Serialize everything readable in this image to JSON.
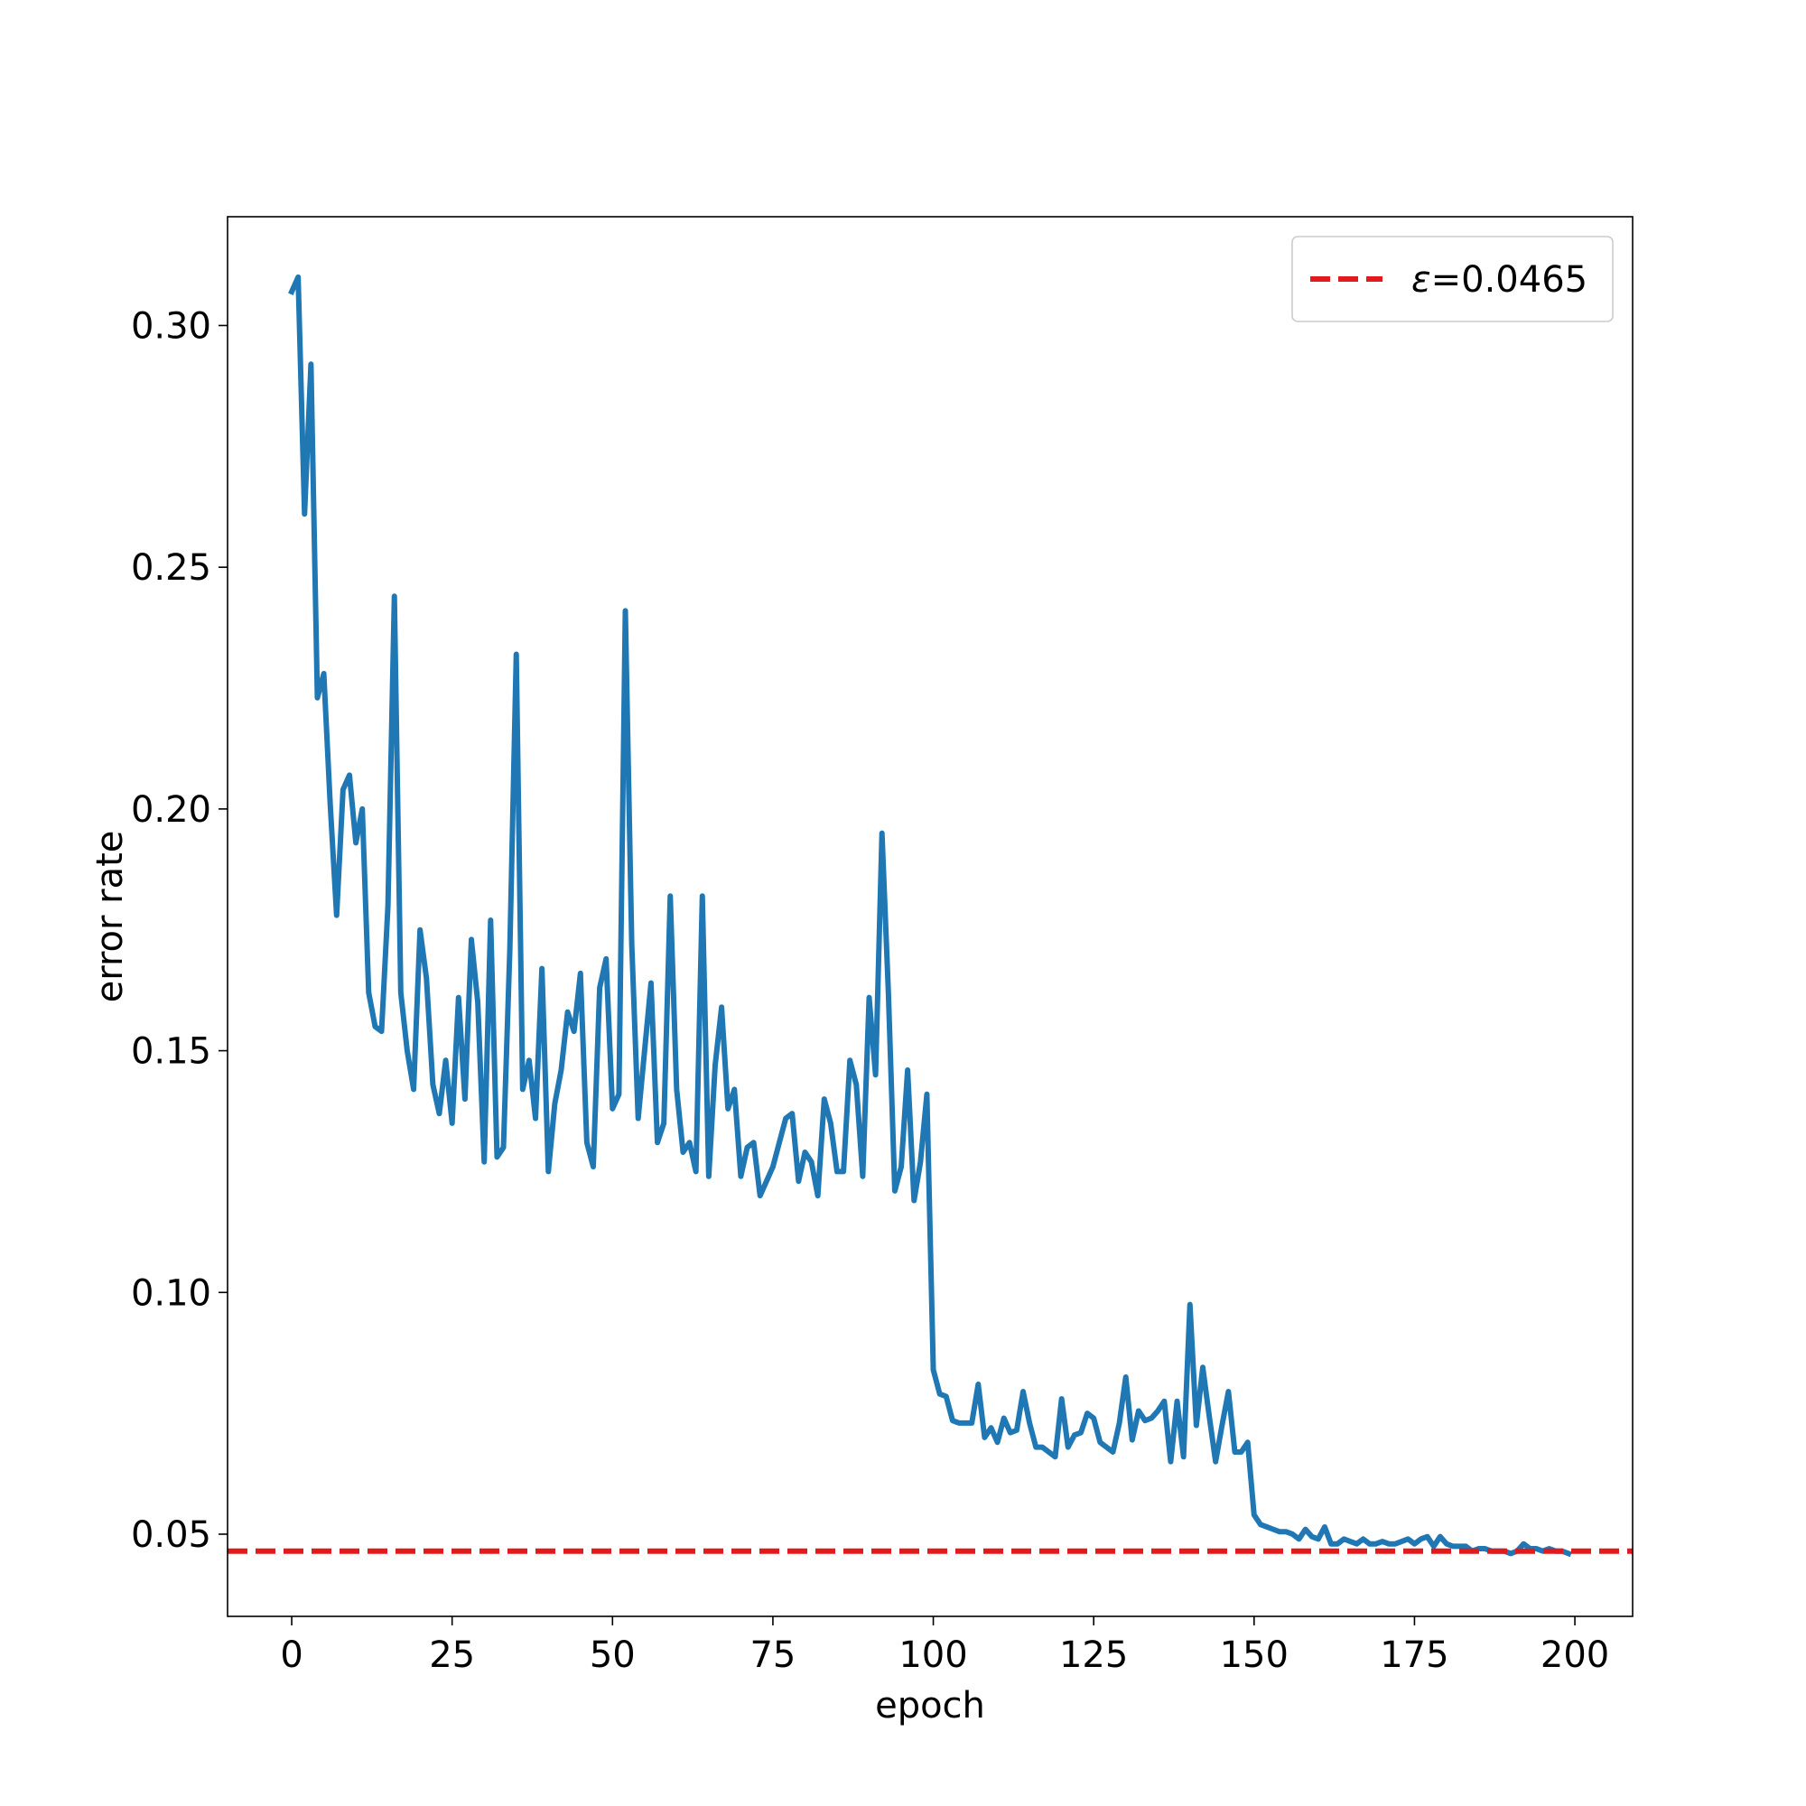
{
  "chart_data": {
    "type": "line",
    "title": "",
    "xlabel": "epoch",
    "ylabel": "error rate",
    "xlim": [
      -10,
      209
    ],
    "ylim": [
      0.033,
      0.3225
    ],
    "xticks": [
      0,
      25,
      50,
      75,
      100,
      125,
      150,
      175,
      200
    ],
    "xtick_labels": [
      "0",
      "25",
      "50",
      "75",
      "100",
      "125",
      "150",
      "175",
      "200"
    ],
    "yticks": [
      0.05,
      0.1,
      0.15,
      0.2,
      0.25,
      0.3
    ],
    "ytick_labels": [
      "0.05",
      "0.10",
      "0.15",
      "0.20",
      "0.25",
      "0.30"
    ],
    "grid": false,
    "legend_position": "top-right",
    "series": [
      {
        "color": "#1f77b4",
        "style": "solid",
        "x_start": 0,
        "x_step": 1,
        "values": [
          0.307,
          0.31,
          0.261,
          0.292,
          0.223,
          0.228,
          0.201,
          0.178,
          0.204,
          0.207,
          0.193,
          0.2,
          0.162,
          0.155,
          0.154,
          0.18,
          0.244,
          0.162,
          0.15,
          0.142,
          0.175,
          0.165,
          0.143,
          0.137,
          0.148,
          0.135,
          0.161,
          0.14,
          0.173,
          0.16,
          0.127,
          0.177,
          0.128,
          0.13,
          0.171,
          0.232,
          0.142,
          0.148,
          0.136,
          0.167,
          0.125,
          0.139,
          0.146,
          0.158,
          0.154,
          0.166,
          0.131,
          0.126,
          0.163,
          0.169,
          0.138,
          0.141,
          0.241,
          0.172,
          0.136,
          0.15,
          0.164,
          0.131,
          0.135,
          0.182,
          0.142,
          0.129,
          0.131,
          0.125,
          0.182,
          0.124,
          0.147,
          0.159,
          0.138,
          0.142,
          0.124,
          0.13,
          0.131,
          0.12,
          0.123,
          0.126,
          0.131,
          0.136,
          0.137,
          0.123,
          0.129,
          0.127,
          0.12,
          0.14,
          0.135,
          0.125,
          0.125,
          0.148,
          0.143,
          0.124,
          0.161,
          0.145,
          0.195,
          0.162,
          0.121,
          0.126,
          0.146,
          0.119,
          0.127,
          0.141,
          0.084,
          0.079,
          0.0785,
          0.0735,
          0.073,
          0.073,
          0.073,
          0.081,
          0.07,
          0.072,
          0.069,
          0.074,
          0.071,
          0.0715,
          0.0795,
          0.073,
          0.068,
          0.068,
          0.067,
          0.066,
          0.078,
          0.068,
          0.0705,
          0.071,
          0.075,
          0.074,
          0.069,
          0.068,
          0.067,
          0.073,
          0.0825,
          0.0695,
          0.0755,
          0.0735,
          0.074,
          0.0755,
          0.0775,
          0.065,
          0.0775,
          0.066,
          0.0975,
          0.0725,
          0.0845,
          0.0745,
          0.065,
          0.0725,
          0.0795,
          0.067,
          0.067,
          0.069,
          0.054,
          0.052,
          0.0515,
          0.051,
          0.0505,
          0.0505,
          0.05,
          0.049,
          0.051,
          0.0495,
          0.049,
          0.0515,
          0.048,
          0.048,
          0.049,
          0.0485,
          0.048,
          0.049,
          0.048,
          0.048,
          0.0485,
          0.048,
          0.048,
          0.0485,
          0.049,
          0.048,
          0.049,
          0.0495,
          0.0475,
          0.0495,
          0.048,
          0.0475,
          0.0475,
          0.0475,
          0.0465,
          0.047,
          0.047,
          0.0465,
          0.0465,
          0.0465,
          0.046,
          0.0465,
          0.048,
          0.047,
          0.047,
          0.0465,
          0.047,
          0.0465,
          0.0465,
          0.046
        ]
      }
    ],
    "reference_lines": [
      {
        "orientation": "horizontal",
        "value": 0.0465,
        "color": "#e31a1c",
        "style": "dashed",
        "legend_symbol": "ε",
        "legend_value": "=0.0465"
      }
    ]
  }
}
